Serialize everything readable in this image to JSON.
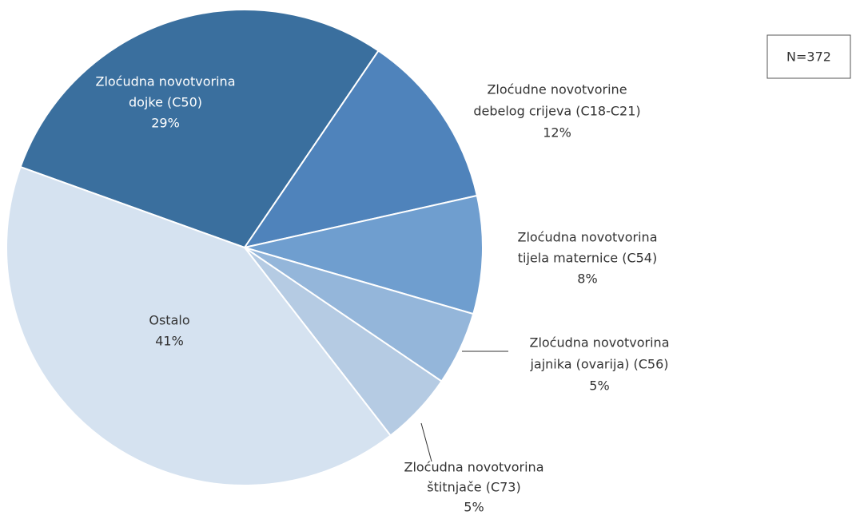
{
  "chart_data": {
    "type": "pie",
    "categories": [
      [
        "Zloćudna novotvorina",
        "dojke (C50)"
      ],
      [
        "Zloćudne novotvorine",
        "debelog crijeva (C18-C21)"
      ],
      [
        "Zloćudna novotvorina",
        "tijela maternice (C54)"
      ],
      [
        "Zloćudna novotvorina",
        "jajnika (ovarija) (C56)"
      ],
      [
        "Zloćudna novotvorina",
        "štitnjače (C73)"
      ],
      [
        "Ostalo"
      ]
    ],
    "values": [
      29,
      12,
      8,
      5,
      5,
      41
    ],
    "value_labels": [
      "29%",
      "12%",
      "8%",
      "5%",
      "5%",
      "41%"
    ],
    "colors": [
      "#3a6f9e",
      "#4f83bb",
      "#6f9ecf",
      "#94b6da",
      "#b5cbe3",
      "#d5e2f0"
    ],
    "annotation": "N=372"
  }
}
